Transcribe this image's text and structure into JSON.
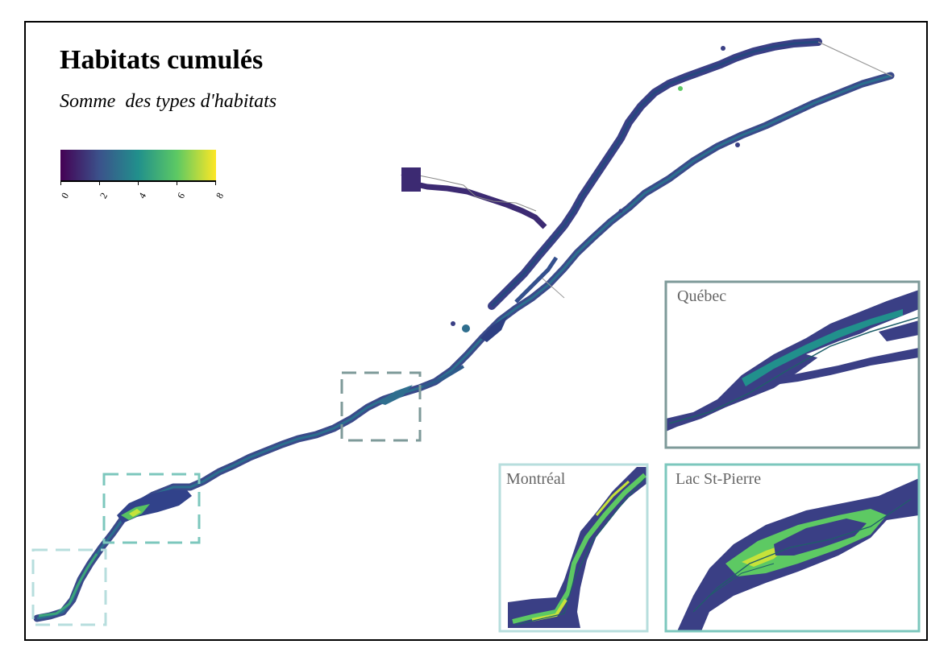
{
  "map": {
    "title": "Habitats cumulés",
    "subtitle": "Somme  des types d'habitats",
    "legend": {
      "ticks": [
        "0",
        "2",
        "4",
        "6",
        "8"
      ],
      "palette": [
        "#440154",
        "#3b528b",
        "#21908c",
        "#5dc963",
        "#fde725"
      ]
    },
    "insets": [
      {
        "name": "Québec",
        "color": "#7e9a99"
      },
      {
        "name": "Montréal",
        "color": "#b7dedd"
      },
      {
        "name": "Lac St-Pierre",
        "color": "#7cc7bd"
      }
    ]
  }
}
